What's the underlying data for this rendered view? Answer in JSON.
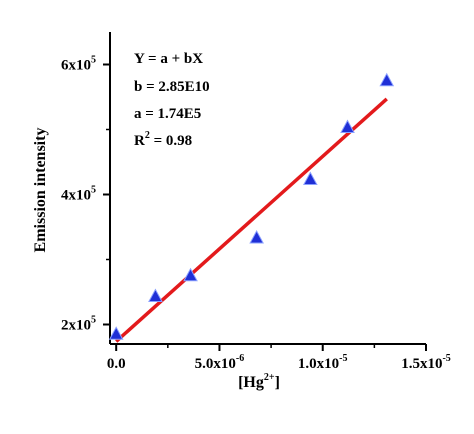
{
  "chart_data": {
    "type": "scatter",
    "x": [
      0.0,
      1.9e-06,
      3.6e-06,
      6.8e-06,
      9.4e-06,
      1.12e-05,
      1.31e-05
    ],
    "y": [
      185000,
      243000,
      275000,
      333000,
      423000,
      503000,
      575000
    ],
    "fit_line": {
      "x": [
        0.0,
        1.31e-05
      ],
      "y": [
        174000,
        547000
      ]
    },
    "xlim": [
      -3e-07,
      1.5e-05
    ],
    "ylim": [
      170000,
      650000
    ],
    "ytick_values": [
      200000,
      400000,
      600000
    ],
    "xtick_values": [
      0.0,
      5e-06,
      1e-05,
      1.5e-05
    ],
    "colors": {
      "marker_fill": "#1f2fd6",
      "marker_edge": "#8aa0ff",
      "fit": "#e31a1c",
      "axis": "#000000"
    },
    "marker": "triangle-up",
    "grid": false,
    "xlabel": {
      "base": "[Hg",
      "sup": "2+",
      "end": "]"
    },
    "ylabel": "Emission intensity",
    "xtick_labels": [
      {
        "base": "0.0",
        "exp": ""
      },
      {
        "base": "5.0x10",
        "exp": "-6"
      },
      {
        "base": "1.0x10",
        "exp": "-5"
      },
      {
        "base": "1.5x10",
        "exp": "-5"
      }
    ],
    "ytick_labels": [
      {
        "base": "2x10",
        "exp": "5"
      },
      {
        "base": "4x10",
        "exp": "5"
      },
      {
        "base": "6x10",
        "exp": "5"
      }
    ],
    "annotation": {
      "equation": "Y = a + bX",
      "b": "b = 2.85E10",
      "a": "a = 1.74E5",
      "r2_base": "R",
      "r2_sup": "2",
      "r2_end": " = 0.98"
    }
  }
}
